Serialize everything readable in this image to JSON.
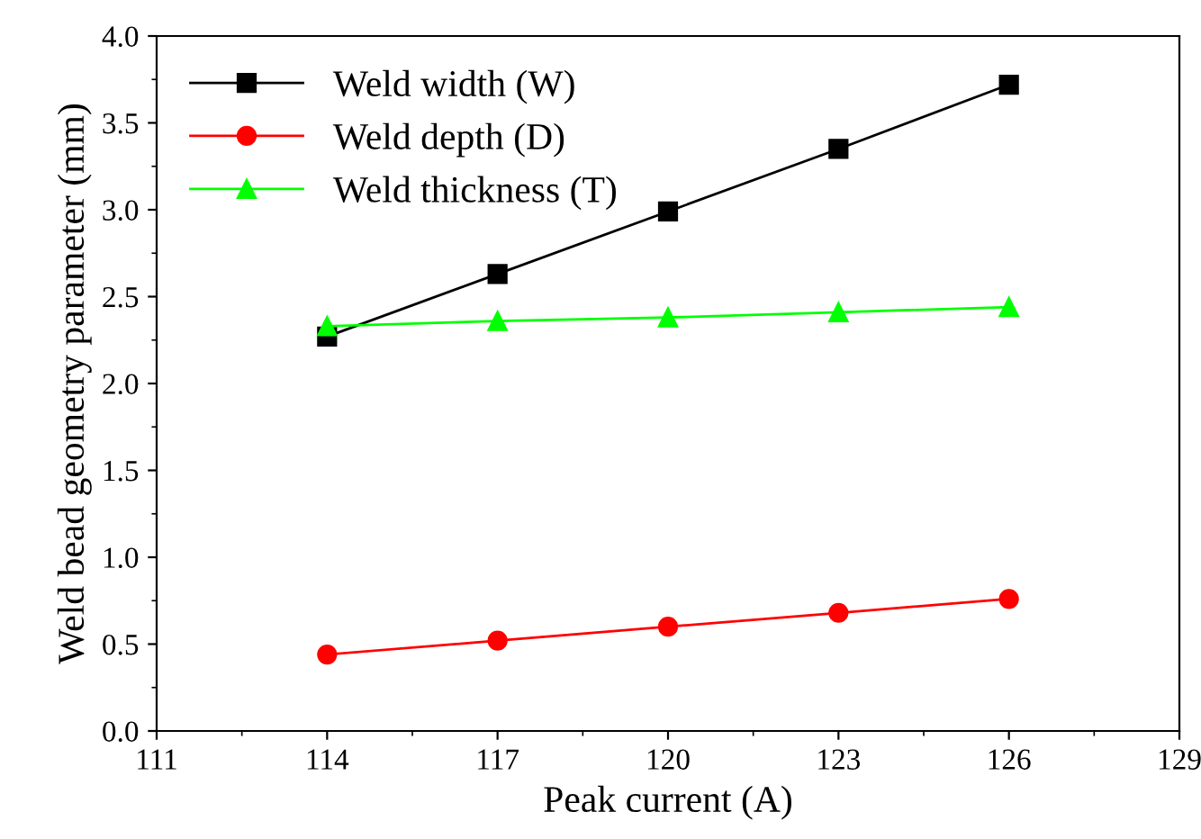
{
  "chart_data": {
    "type": "line",
    "xlabel": "Peak current (A)",
    "ylabel": "Weld bead geometry parameter (mm)",
    "x": [
      114,
      117,
      120,
      123,
      126
    ],
    "series": [
      {
        "name": "Weld width (W)",
        "color": "#000000",
        "marker": "square",
        "values": [
          2.27,
          2.63,
          2.99,
          3.35,
          3.72
        ]
      },
      {
        "name": "Weld depth (D)",
        "color": "#ff0000",
        "marker": "circle",
        "values": [
          0.44,
          0.52,
          0.6,
          0.68,
          0.76
        ]
      },
      {
        "name": "Weld thickness (T)",
        "color": "#00ff00",
        "marker": "triangle",
        "values": [
          2.33,
          2.36,
          2.38,
          2.41,
          2.44
        ]
      }
    ],
    "xlim": [
      111,
      129
    ],
    "xticks": [
      111,
      114,
      117,
      120,
      123,
      126,
      129
    ],
    "ylim": [
      0,
      4
    ],
    "yticks": [
      {
        "value": 0,
        "label": "0.0"
      },
      {
        "value": 0.5,
        "label": "0.5"
      },
      {
        "value": 1,
        "label": "1.0"
      },
      {
        "value": 1.5,
        "label": "1.5"
      },
      {
        "value": 2,
        "label": "2.0"
      },
      {
        "value": 2.5,
        "label": "2.5"
      },
      {
        "value": 3,
        "label": "3.0"
      },
      {
        "value": 3.5,
        "label": "3.5"
      },
      {
        "value": 4,
        "label": "4.0"
      }
    ],
    "grid": false,
    "legend": "top left",
    "line_style": "solid"
  }
}
